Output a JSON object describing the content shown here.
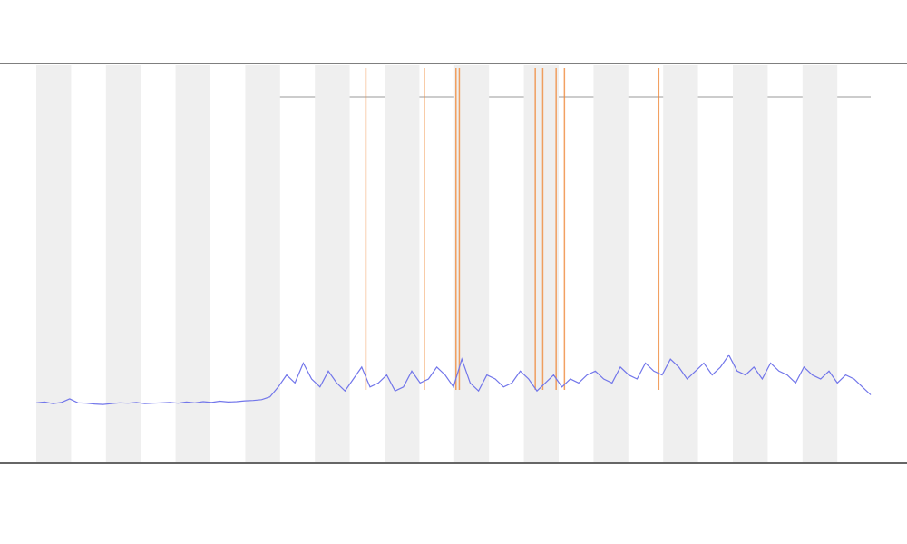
{
  "chart_data": {
    "type": "line",
    "x": [
      0,
      1,
      2,
      3,
      4,
      5,
      6,
      7,
      8,
      9,
      10,
      11,
      12,
      13,
      14,
      15,
      16,
      17,
      18,
      19,
      20,
      21,
      22,
      23,
      24,
      25,
      26,
      27,
      28,
      29,
      30,
      31,
      32,
      33,
      34,
      35,
      36,
      37,
      38,
      39,
      40,
      41,
      42,
      43,
      44,
      45,
      46,
      47,
      48,
      49,
      50,
      51,
      52,
      53,
      54,
      55,
      56,
      57,
      58,
      59,
      60,
      61,
      62,
      63,
      64,
      65,
      66,
      67,
      68,
      69,
      70,
      71,
      72,
      73,
      74,
      75,
      76,
      77,
      78,
      79,
      80,
      81,
      82,
      83,
      84,
      85,
      86,
      87,
      88,
      89,
      90,
      91,
      92,
      93,
      94,
      95,
      96,
      97,
      98,
      99,
      100
    ],
    "series": [
      {
        "color": "#7276ea",
        "values": [
          15,
          15.2,
          14.8,
          15.1,
          16,
          15,
          14.9,
          14.7,
          14.6,
          14.8,
          15,
          14.9,
          15.1,
          14.8,
          14.9,
          15,
          15.1,
          14.9,
          15.2,
          15,
          15.3,
          15.1,
          15.4,
          15.2,
          15.3,
          15.5,
          15.6,
          15.8,
          16.5,
          19,
          22,
          20,
          25,
          21,
          19,
          23,
          20,
          18,
          21,
          24,
          19,
          20,
          22,
          18,
          19,
          23,
          20,
          21,
          24,
          22,
          19,
          26,
          20,
          18,
          22,
          21,
          19,
          20,
          23,
          21,
          18,
          20,
          22,
          19,
          21,
          20,
          22,
          23,
          21,
          20,
          24,
          22,
          21,
          25,
          23,
          22,
          26,
          24,
          21,
          23,
          25,
          22,
          24,
          27,
          23,
          22,
          24,
          21,
          25,
          23,
          22,
          20,
          24,
          22,
          21,
          23,
          20,
          22,
          21,
          19,
          17
        ]
      }
    ],
    "events": {
      "color": "#f08a3c",
      "x": [
        39.5,
        46.5,
        50.3,
        50.7,
        59.8,
        60.7,
        62.3,
        63.3,
        74.6
      ]
    },
    "xlim": [
      0,
      100
    ],
    "ylim": [
      0,
      100
    ]
  }
}
